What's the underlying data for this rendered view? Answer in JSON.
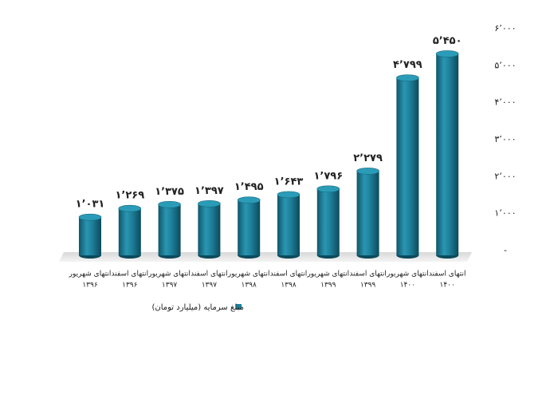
{
  "chart_data": {
    "type": "bar",
    "categories": [
      [
        "انتهای شهریور",
        "۱۳۹۶"
      ],
      [
        "انتهای اسفند",
        "۱۳۹۶"
      ],
      [
        "انتهای شهریور",
        "۱۳۹۷"
      ],
      [
        "انتهای اسفند",
        "۱۳۹۷"
      ],
      [
        "انتهای شهریور",
        "۱۳۹۸"
      ],
      [
        "انتهای اسفند",
        "۱۳۹۸"
      ],
      [
        "انتهای شهریور",
        "۱۳۹۹"
      ],
      [
        "انتهای اسفند",
        "۱۳۹۹"
      ],
      [
        "انتهای شهریور",
        "۱۴۰۰"
      ],
      [
        "انتهای اسفند",
        "۱۴۰۰"
      ]
    ],
    "series": [
      {
        "name": "مبلغ سرمایه (میلیارد تومان)",
        "color": "#1d7f99",
        "values": [
          1031,
          1269,
          1375,
          1397,
          1495,
          1643,
          1796,
          2279,
          4799,
          5450
        ],
        "value_labels": [
          "۱٬۰۳۱",
          "۱٬۲۶۹",
          "۱٬۳۷۵",
          "۱٬۳۹۷",
          "۱٬۴۹۵",
          "۱٬۶۴۳",
          "۱٬۷۹۶",
          "۲٬۲۷۹",
          "۴٬۷۹۹",
          "۵٬۴۵۰"
        ]
      }
    ],
    "ylim": [
      0,
      6000
    ],
    "yticks": [
      {
        "value": 0,
        "label": "-"
      },
      {
        "value": 1000,
        "label": "۱٬۰۰۰"
      },
      {
        "value": 2000,
        "label": "۲٬۰۰۰"
      },
      {
        "value": 3000,
        "label": "۳٬۰۰۰"
      },
      {
        "value": 4000,
        "label": "۴٬۰۰۰"
      },
      {
        "value": 5000,
        "label": "۵٬۰۰۰"
      },
      {
        "value": 6000,
        "label": "۶٬۰۰۰"
      }
    ],
    "legend": "bottom"
  }
}
